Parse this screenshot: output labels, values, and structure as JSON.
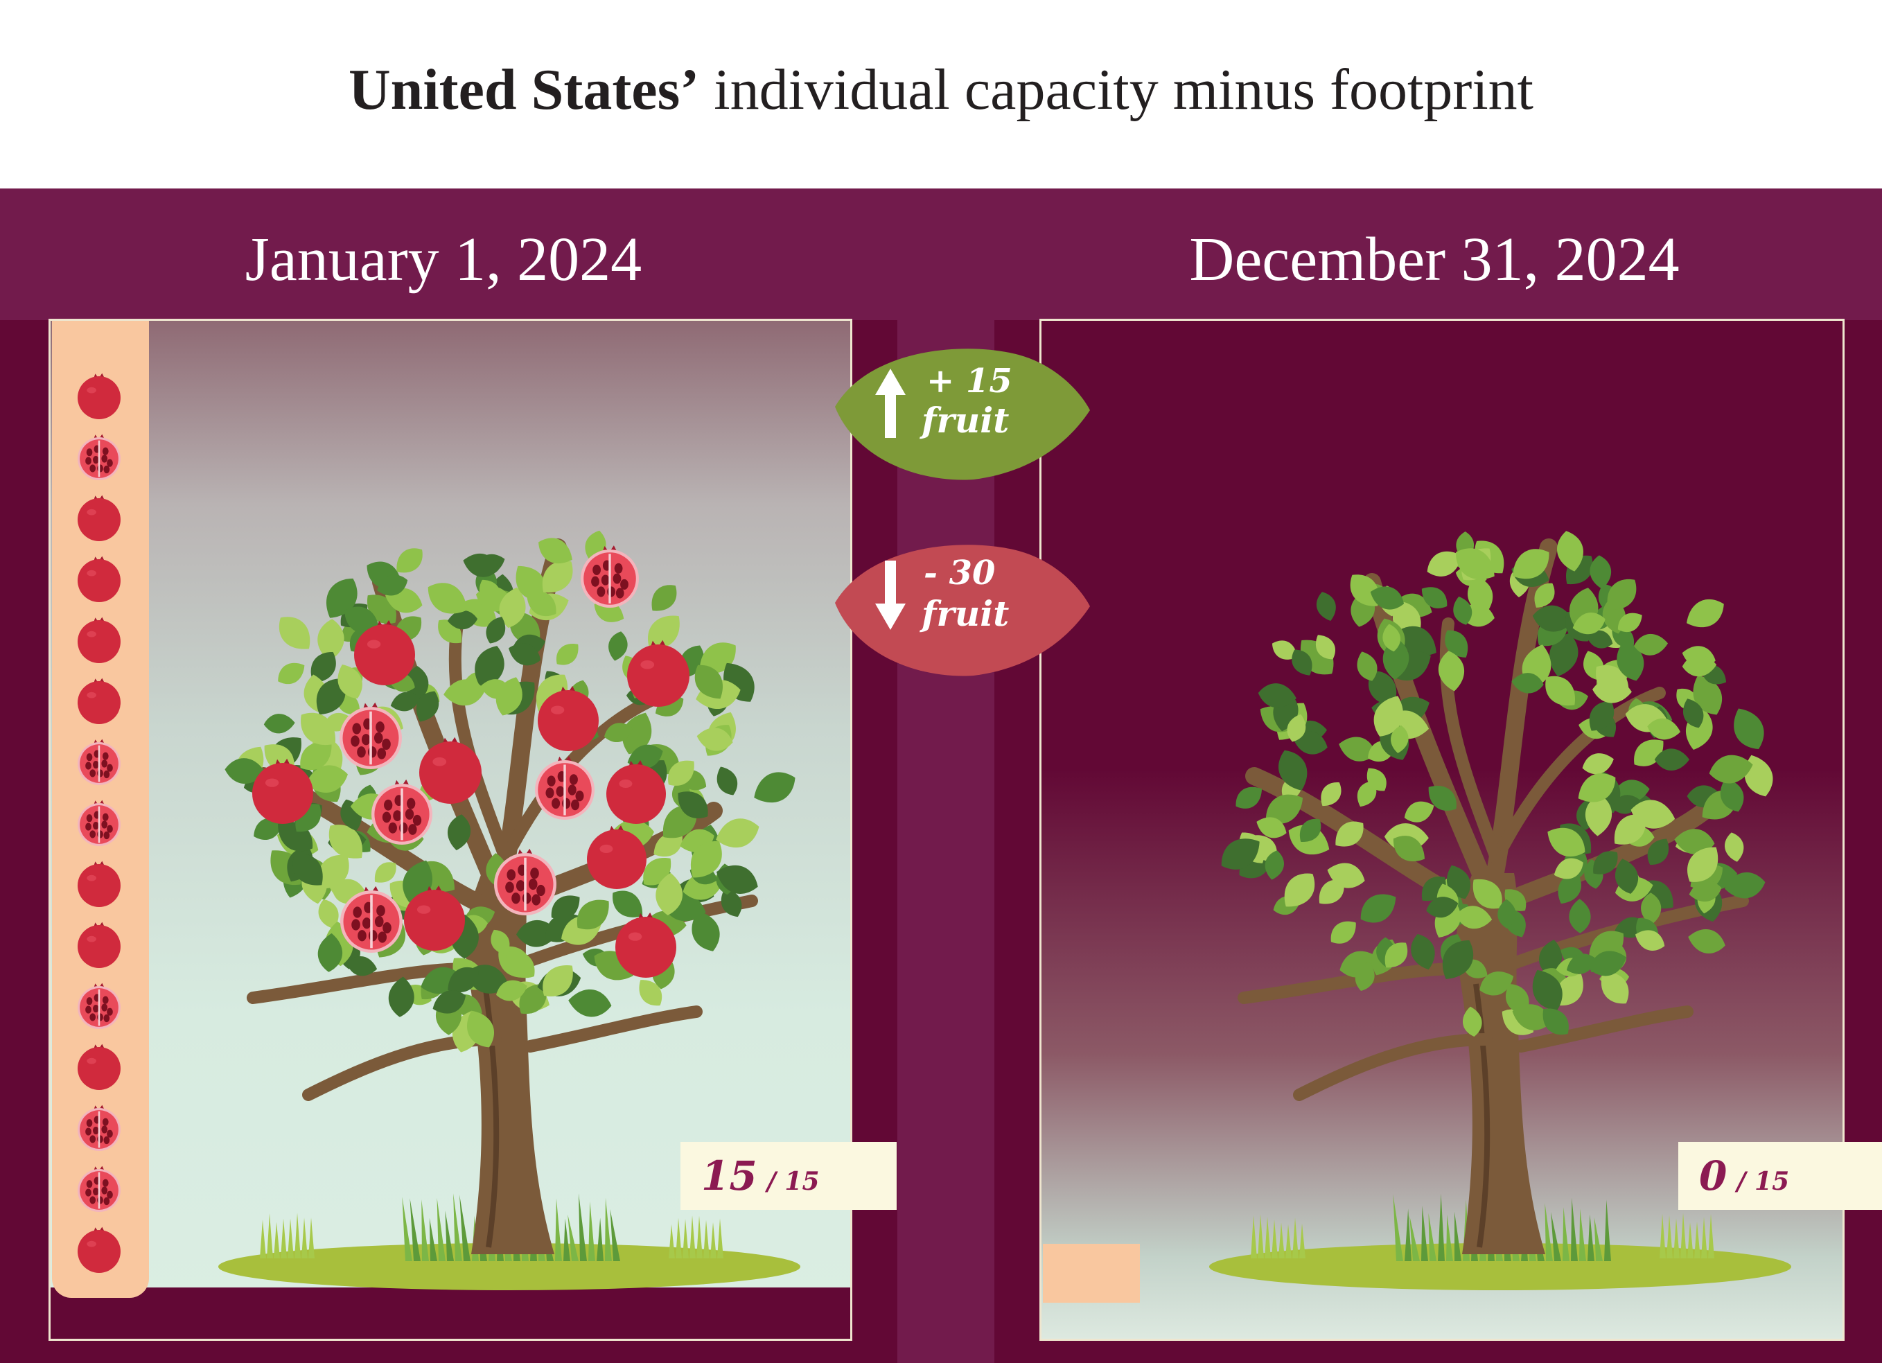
{
  "title": {
    "strong": "United States’",
    "rest": " individual capacity minus footprint"
  },
  "dates": {
    "left": "January 1, 2024",
    "right": "December 31, 2024"
  },
  "badges": {
    "gain": {
      "amount": "+ 15",
      "unit": "fruit",
      "color": "#7e9a38",
      "icon": "arrow-up-icon"
    },
    "loss": {
      "amount": "- 30",
      "unit": "fruit",
      "color": "#c24a53",
      "icon": "arrow-down-icon"
    }
  },
  "counters": {
    "left": {
      "value": "15",
      "total": "/ 15"
    },
    "right": {
      "value": "0",
      "total": "/ 15"
    }
  },
  "fruit_stack": {
    "count": 15,
    "icons": [
      "pomegranate-icon",
      "pomegranate-open-icon",
      "pomegranate-icon",
      "pomegranate-icon",
      "pomegranate-icon",
      "pomegranate-icon",
      "pomegranate-open-icon",
      "pomegranate-open-icon",
      "pomegranate-icon",
      "pomegranate-icon",
      "pomegranate-open-icon",
      "pomegranate-icon",
      "pomegranate-open-icon",
      "pomegranate-open-icon",
      "pomegranate-icon"
    ]
  },
  "colors": {
    "band": "#721b4c",
    "maroon": "#620835",
    "meter": "#f9c79f",
    "counter_bg": "#fbf8e0",
    "counter_text": "#8b1a52",
    "fruit": "#d02a3d"
  }
}
